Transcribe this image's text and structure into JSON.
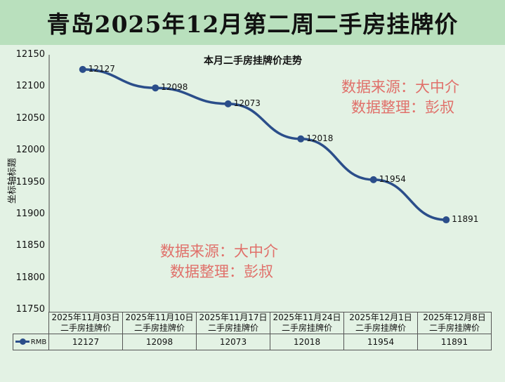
{
  "header": {
    "title": "青岛2025年12月第二周二手房挂牌价"
  },
  "watermarks": [
    {
      "line1": "数据来源：大中介",
      "line2": "数据整理：彭叔"
    },
    {
      "line1": "数据来源：大中介",
      "line2": "数据整理：彭叔"
    }
  ],
  "chart_data": {
    "type": "line",
    "title": "本月二手房挂牌价走势",
    "ylabel": "坐标轴标题",
    "ylim": [
      11750,
      12150
    ],
    "yticks": [
      "12150",
      "12100",
      "12050",
      "12000",
      "11950",
      "11900",
      "11850",
      "11800",
      "11750"
    ],
    "categories": [
      [
        "2025年11月03日",
        "二手房挂牌价"
      ],
      [
        "2025年11月10日",
        "二手房挂牌价"
      ],
      [
        "2025年11月17日",
        "二手房挂牌价"
      ],
      [
        "2025年11月24日",
        "二手房挂牌价"
      ],
      [
        "2025年12月1日",
        "二手房挂牌价"
      ],
      [
        "2025年12月8日",
        "二手房挂牌价"
      ]
    ],
    "series": [
      {
        "name": "RMB",
        "values": [
          12127,
          12098,
          12073,
          12018,
          11954,
          11891
        ],
        "color": "#2b4e8a"
      }
    ],
    "grid": false,
    "data_table": true
  }
}
